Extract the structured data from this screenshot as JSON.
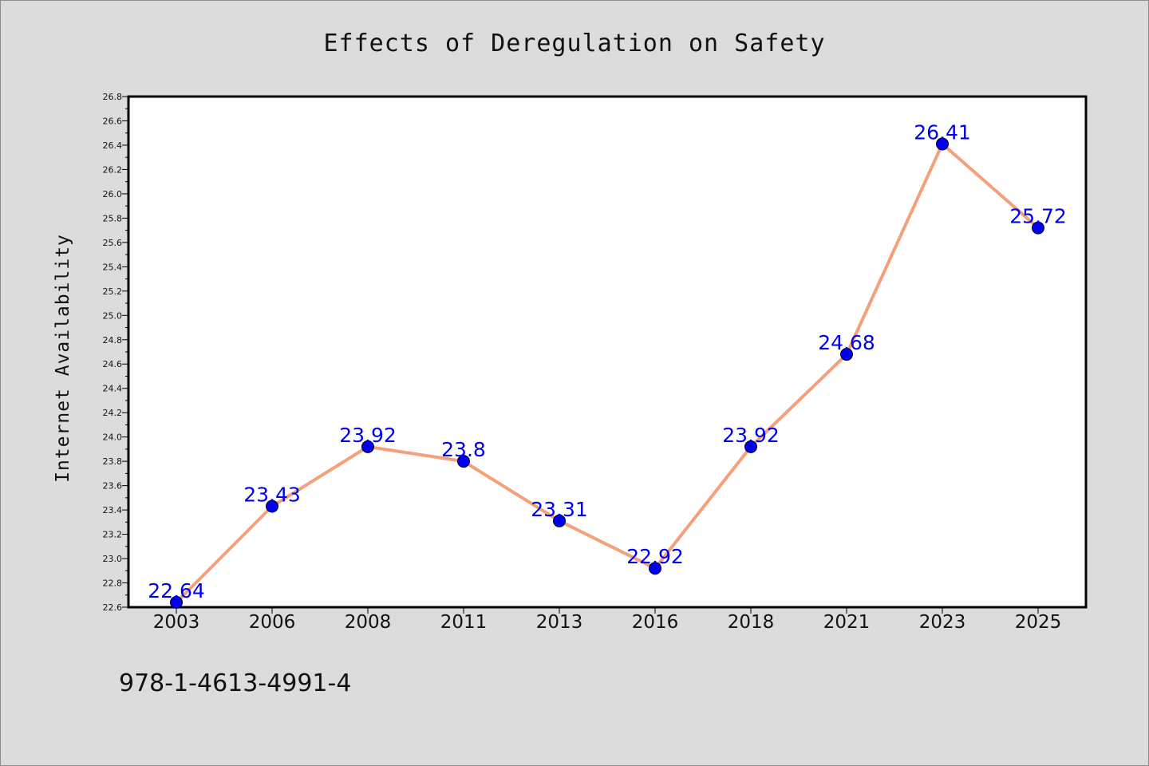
{
  "chart_data": {
    "type": "line",
    "title": "Effects of Deregulation on Safety",
    "xlabel": "",
    "ylabel": "Internet Availability",
    "categories": [
      "2003",
      "2006",
      "2008",
      "2011",
      "2013",
      "2016",
      "2018",
      "2021",
      "2023",
      "2025"
    ],
    "series": [
      {
        "values": [
          22.64,
          23.43,
          23.92,
          23.8,
          23.31,
          22.92,
          23.92,
          24.68,
          26.41,
          25.72
        ],
        "data_labels": [
          "22.64",
          "23.43",
          "23.92",
          "23.8",
          "23.31",
          "22.92",
          "23.92",
          "24.68",
          "26.41",
          "25.72"
        ],
        "line_color": "#f4a07a",
        "marker_color": "#0000ee"
      }
    ],
    "ylim": [
      22.6,
      26.8
    ],
    "yticks": [
      "22.6",
      "22.8",
      "23.0",
      "23.2",
      "23.4",
      "23.6",
      "23.8",
      "24.0",
      "24.2",
      "24.4",
      "24.6",
      "24.8",
      "25.0",
      "25.2",
      "25.4",
      "25.6",
      "25.8",
      "26.0",
      "26.2",
      "26.4",
      "26.6",
      "26.8"
    ],
    "grid": false,
    "legend": "none"
  },
  "annotation": {
    "isbn": "978-1-4613-4991-4"
  },
  "colors": {
    "background": "#dcdcdc",
    "plot_background": "#ffffff",
    "data_label": "#0000ee"
  }
}
